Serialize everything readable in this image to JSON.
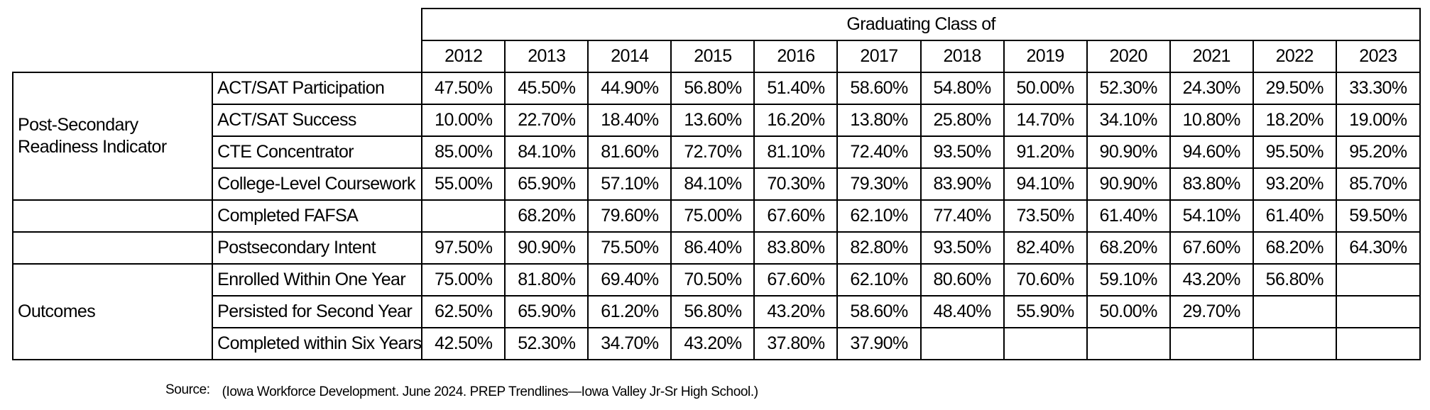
{
  "table": {
    "header_title": "Graduating Class of",
    "years": [
      "2012",
      "2013",
      "2014",
      "2015",
      "2016",
      "2017",
      "2018",
      "2019",
      "2020",
      "2021",
      "2022",
      "2023"
    ],
    "groups": {
      "readiness": "Post-Secondary Readiness Indicator",
      "outcomes": "Outcomes"
    },
    "rows": [
      {
        "label": "ACT/SAT Participation",
        "values": [
          "47.50%",
          "45.50%",
          "44.90%",
          "56.80%",
          "51.40%",
          "58.60%",
          "54.80%",
          "50.00%",
          "52.30%",
          "24.30%",
          "29.50%",
          "33.30%"
        ]
      },
      {
        "label": "ACT/SAT Success",
        "values": [
          "10.00%",
          "22.70%",
          "18.40%",
          "13.60%",
          "16.20%",
          "13.80%",
          "25.80%",
          "14.70%",
          "34.10%",
          "10.80%",
          "18.20%",
          "19.00%"
        ]
      },
      {
        "label": "CTE Concentrator",
        "values": [
          "85.00%",
          "84.10%",
          "81.60%",
          "72.70%",
          "81.10%",
          "72.40%",
          "93.50%",
          "91.20%",
          "90.90%",
          "94.60%",
          "95.50%",
          "95.20%"
        ]
      },
      {
        "label": "College-Level Coursework",
        "values": [
          "55.00%",
          "65.90%",
          "57.10%",
          "84.10%",
          "70.30%",
          "79.30%",
          "83.90%",
          "94.10%",
          "90.90%",
          "83.80%",
          "93.20%",
          "85.70%"
        ]
      },
      {
        "label": "Completed FAFSA",
        "values": [
          "",
          "68.20%",
          "79.60%",
          "75.00%",
          "67.60%",
          "62.10%",
          "77.40%",
          "73.50%",
          "61.40%",
          "54.10%",
          "61.40%",
          "59.50%"
        ]
      },
      {
        "label": "Postsecondary Intent",
        "values": [
          "97.50%",
          "90.90%",
          "75.50%",
          "86.40%",
          "83.80%",
          "82.80%",
          "93.50%",
          "82.40%",
          "68.20%",
          "67.60%",
          "68.20%",
          "64.30%"
        ]
      },
      {
        "label": "Enrolled Within One Year",
        "values": [
          "75.00%",
          "81.80%",
          "69.40%",
          "70.50%",
          "67.60%",
          "62.10%",
          "80.60%",
          "70.60%",
          "59.10%",
          "43.20%",
          "56.80%",
          ""
        ]
      },
      {
        "label": "Persisted for Second Year",
        "values": [
          "62.50%",
          "65.90%",
          "61.20%",
          "56.80%",
          "43.20%",
          "58.60%",
          "48.40%",
          "55.90%",
          "50.00%",
          "29.70%",
          "",
          ""
        ]
      },
      {
        "label": "Completed within Six Years",
        "values": [
          "42.50%",
          "52.30%",
          "34.70%",
          "43.20%",
          "37.80%",
          "37.90%",
          "",
          "",
          "",
          "",
          "",
          ""
        ]
      }
    ]
  },
  "source": {
    "label": "Source:",
    "text": "(Iowa Workforce Development. June 2024. PREP Trendlines—Iowa Valley Jr-Sr High School.)"
  }
}
